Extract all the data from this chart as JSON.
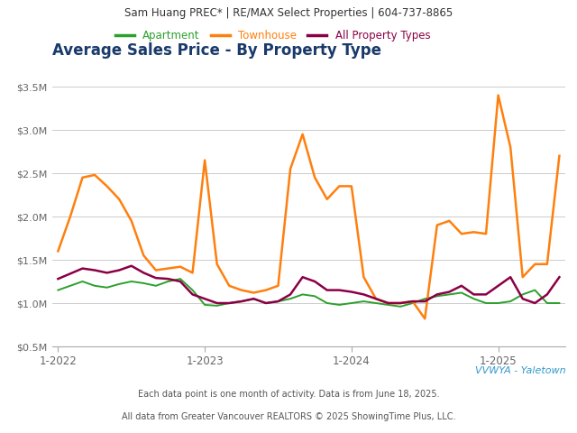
{
  "title": "Average Sales Price - By Property Type",
  "header": "Sam Huang PREC* | RE/MAX Select Properties | 604-737-8865",
  "footer1": "Each data point is one month of activity. Data is from June 18, 2025.",
  "footer2": "All data from Greater Vancouver REALTORS © 2025 ShowingTime Plus, LLC.",
  "watermark": "VVWYA - Yaletown",
  "ylim": [
    500000,
    3500000
  ],
  "yticks": [
    500000,
    1000000,
    1500000,
    2000000,
    2500000,
    3000000,
    3500000
  ],
  "ytick_labels": [
    "$0.5M",
    "$1.0M",
    "$1.5M",
    "$2.0M",
    "$2.5M",
    "$3.0M",
    "$3.5M"
  ],
  "xtick_positions": [
    0,
    12,
    24,
    36
  ],
  "xtick_labels": [
    "1-2022",
    "1-2023",
    "1-2024",
    "1-2025"
  ],
  "legend_labels": [
    "Apartment",
    "Townhouse",
    "All Property Types"
  ],
  "legend_colors": [
    "#2ca02c",
    "#ff7f0e",
    "#8b0045"
  ],
  "apartment": [
    1150000,
    1200000,
    1250000,
    1200000,
    1180000,
    1220000,
    1250000,
    1230000,
    1200000,
    1250000,
    1280000,
    1150000,
    980000,
    970000,
    1000000,
    1020000,
    1050000,
    1000000,
    1020000,
    1050000,
    1100000,
    1080000,
    1000000,
    980000,
    1000000,
    1020000,
    1000000,
    980000,
    960000,
    1000000,
    1050000,
    1080000,
    1100000,
    1120000,
    1050000,
    1000000,
    1000000,
    1020000,
    1100000,
    1150000,
    1000000,
    1000000
  ],
  "townhouse": [
    1600000,
    2000000,
    2450000,
    2480000,
    2350000,
    2200000,
    1950000,
    1550000,
    1380000,
    1400000,
    1420000,
    1350000,
    2650000,
    1450000,
    1200000,
    1150000,
    1120000,
    1150000,
    1200000,
    2550000,
    2950000,
    2450000,
    2200000,
    2350000,
    2350000,
    1300000,
    1050000,
    1000000,
    1000000,
    1020000,
    820000,
    1900000,
    1950000,
    1800000,
    1820000,
    1800000,
    3400000,
    2800000,
    1300000,
    1450000,
    1450000,
    2700000
  ],
  "all_types": [
    1280000,
    1340000,
    1400000,
    1380000,
    1350000,
    1380000,
    1430000,
    1350000,
    1290000,
    1280000,
    1250000,
    1100000,
    1050000,
    1000000,
    1000000,
    1020000,
    1050000,
    1000000,
    1020000,
    1100000,
    1300000,
    1250000,
    1150000,
    1150000,
    1130000,
    1100000,
    1050000,
    1000000,
    1000000,
    1020000,
    1020000,
    1100000,
    1130000,
    1200000,
    1100000,
    1100000,
    1200000,
    1300000,
    1050000,
    1000000,
    1100000,
    1300000
  ],
  "background_color": "#ffffff",
  "header_bg": "#e0e0e0",
  "plot_bg": "#ffffff",
  "grid_color": "#cccccc",
  "axis_label_color": "#666666",
  "title_color": "#1a3a6b",
  "watermark_color": "#3399cc",
  "footer_color": "#555555"
}
